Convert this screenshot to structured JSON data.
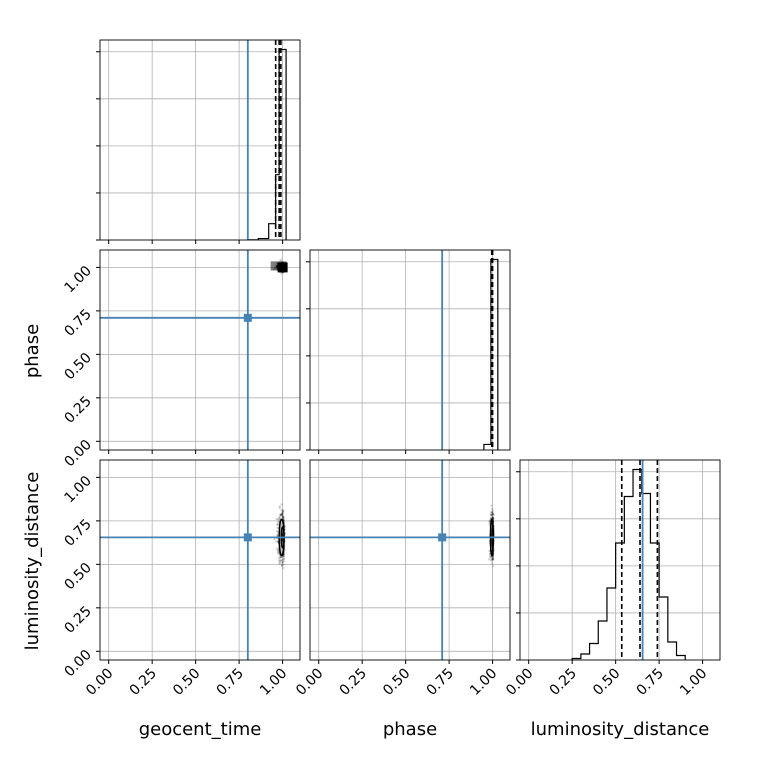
{
  "chart_data": {
    "type": "corner",
    "parameters": [
      "geocent_time",
      "phase",
      "luminosity_distance"
    ],
    "axis_labels": {
      "geocent_time": "geocent_time",
      "phase": "phase",
      "luminosity_distance": "luminosity_distance"
    },
    "tick_values": [
      0.0,
      0.25,
      0.5,
      0.75,
      1.0
    ],
    "tick_labels": [
      "0.00",
      "0.25",
      "0.50",
      "0.75",
      "1.00"
    ],
    "axis_range": [
      -0.05,
      1.1
    ],
    "grid": true,
    "injection_color": "#4682b4",
    "truth": {
      "geocent_time": 0.8,
      "phase": 0.71,
      "luminosity_distance": 0.655
    },
    "quantiles": {
      "geocent_time": [
        0.96,
        0.98,
        0.99
      ],
      "phase": [
        0.995,
        0.997,
        1.0
      ],
      "luminosity_distance": [
        0.535,
        0.64,
        0.74
      ]
    },
    "histograms": {
      "geocent_time": {
        "bin_edges": [
          0.8,
          0.86,
          0.92,
          0.96,
          0.98,
          1.02
        ],
        "values": [
          0.4,
          4.0,
          45.0,
          180.0,
          525.0
        ]
      },
      "phase": {
        "bin_edges": [
          0.95,
          0.99,
          1.03
        ],
        "values": [
          12.0,
          410.0
        ]
      },
      "luminosity_distance": {
        "bin_edges": [
          0.25,
          0.3,
          0.35,
          0.4,
          0.45,
          0.5,
          0.55,
          0.6,
          0.65,
          0.7,
          0.75,
          0.8,
          0.85,
          0.9
        ],
        "values": [
          1.0,
          4.0,
          11.0,
          26.0,
          48.0,
          78.0,
          109.0,
          127.0,
          111.0,
          78.0,
          42.0,
          12.0,
          3.0
        ]
      }
    },
    "pairs": {
      "phase_vs_geocent_time": {
        "x_center": 1.0,
        "y_center": 1.0,
        "x_spread": 0.03,
        "y_spread": 0.02
      },
      "luminosity_distance_vs_geocent_time": {
        "x_center": 1.0,
        "y_center": 0.655,
        "x_spread": 0.025,
        "y_spread": 0.11
      },
      "luminosity_distance_vs_phase": {
        "x_center": 1.0,
        "y_center": 0.655,
        "x_spread": 0.012,
        "y_spread": 0.11
      }
    }
  }
}
